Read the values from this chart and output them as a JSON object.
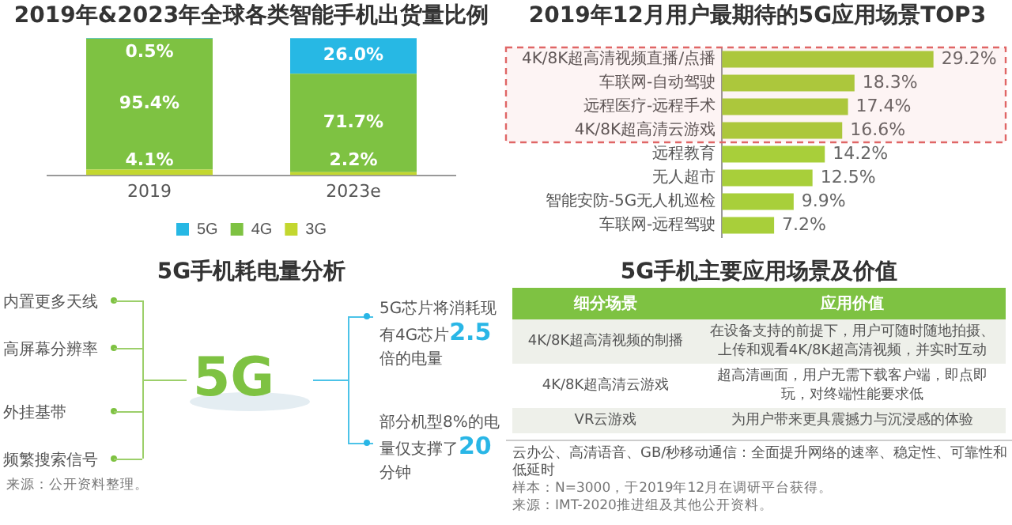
{
  "chart_data": [
    {
      "type": "bar",
      "title": "2019年&2023年全球各类智能手机出货量比例",
      "categories": [
        "2019",
        "2023e"
      ],
      "stacked": true,
      "legend": "bottom",
      "series": [
        {
          "name": "3G",
          "color": "#c3d72f",
          "values": [
            4.1,
            2.2
          ],
          "value_labels": [
            "4.1%",
            "2.2%"
          ]
        },
        {
          "name": "4G",
          "color": "#7ec242",
          "values": [
            95.4,
            71.7
          ],
          "value_labels": [
            "95.4%",
            "71.7%"
          ]
        },
        {
          "name": "5G",
          "color": "#27b8e4",
          "values": [
            0.5,
            26.0
          ],
          "value_labels": [
            "0.5%",
            "26.0%"
          ]
        }
      ]
    },
    {
      "type": "bar",
      "orientation": "horizontal",
      "title": "2019年12月用户最期待的5G应用场景TOP3",
      "categories": [
        "4K/8K超高清视频直播/点播",
        "车联网-自动驾驶",
        "远程医疗-远程手术",
        "4K/8K超高清云游戏",
        "远程教育",
        "无人超市",
        "智能安防-5G无人机巡检",
        "车联网-远程驾驶"
      ],
      "values": [
        29.2,
        18.3,
        17.4,
        16.6,
        14.2,
        12.5,
        9.9,
        7.2
      ],
      "value_labels": [
        "29.2%",
        "18.3%",
        "17.4%",
        "16.6%",
        "14.2%",
        "12.5%",
        "9.9%",
        "7.2%"
      ],
      "color": "#a8cf3a",
      "bands": [
        {
          "axis": "y",
          "from": "4K/8K超高清视频直播/点播",
          "to": "4K/8K超高清云游戏",
          "color": "#e06666"
        }
      ]
    },
    {
      "type": "other",
      "title": "5G手机耗电量分析",
      "annotations": [
        "内置更多天线",
        "高屏幕分辨率",
        "外挂基带",
        "频繁搜索信号",
        "5G",
        "5G芯片将消耗现有4G芯片2.5倍的电量",
        "部分机型8%的电量仅支撑了20分钟",
        "来源：公开资料整理。"
      ]
    },
    {
      "type": "other",
      "title": "5G手机主要应用场景及价值",
      "annotations": [
        "细分场景",
        "应用价值",
        "4K/8K超高清视频的制播",
        "在设备支持的前提下，用户可随时随地拍摄、上传和观看4K/8K超高清视频，并实时互动",
        "4K/8K超高清云游戏",
        "超高清画面，用户无需下载客户端，即点即玩，对终端性能要求低",
        "VR云游戏",
        "为用户带来更具震撼力与沉浸感的体验",
        "云办公、高清语音、GB/秒移动通信：全面提升网络的速率、稳定性、可靠性和低延时",
        "样本：N=3000，于2019年12月在调研平台获得。",
        "来源：IMT-2020推进组及其他公开资料。"
      ]
    }
  ]
}
